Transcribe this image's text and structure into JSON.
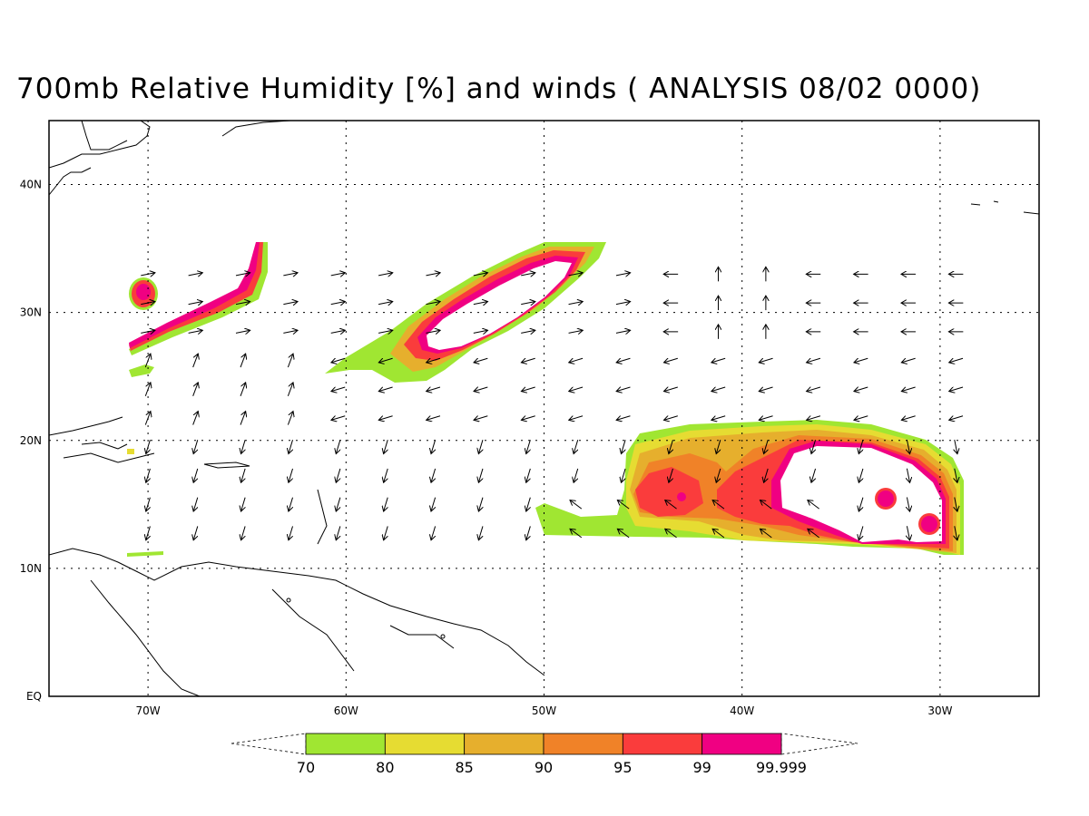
{
  "title": "700mb Relative Humidity [%] and winds ( ANALYSIS 08/02 0000)",
  "map": {
    "lon_range": [
      -75,
      -25
    ],
    "lat_range": [
      0,
      45
    ],
    "lat_ticks": [
      {
        "lat": 40,
        "label": "40N"
      },
      {
        "lat": 30,
        "label": "30N"
      },
      {
        "lat": 20,
        "label": "20N"
      },
      {
        "lat": 10,
        "label": "10N"
      },
      {
        "lat": 0,
        "label": "EQ"
      }
    ],
    "lon_ticks": [
      {
        "lon": -70,
        "label": "70W"
      },
      {
        "lon": -60,
        "label": "60W"
      },
      {
        "lon": -50,
        "label": "50W"
      },
      {
        "lon": -40,
        "label": "40W"
      },
      {
        "lon": -30,
        "label": "30W"
      }
    ],
    "grid": "dotted"
  },
  "colorbar": {
    "levels": [
      "70",
      "80",
      "85",
      "90",
      "95",
      "99",
      "99.999"
    ],
    "colors": [
      "#a0e632",
      "#e6dc32",
      "#e6af2d",
      "#f08228",
      "#fa3c3c",
      "#f00082"
    ]
  }
}
